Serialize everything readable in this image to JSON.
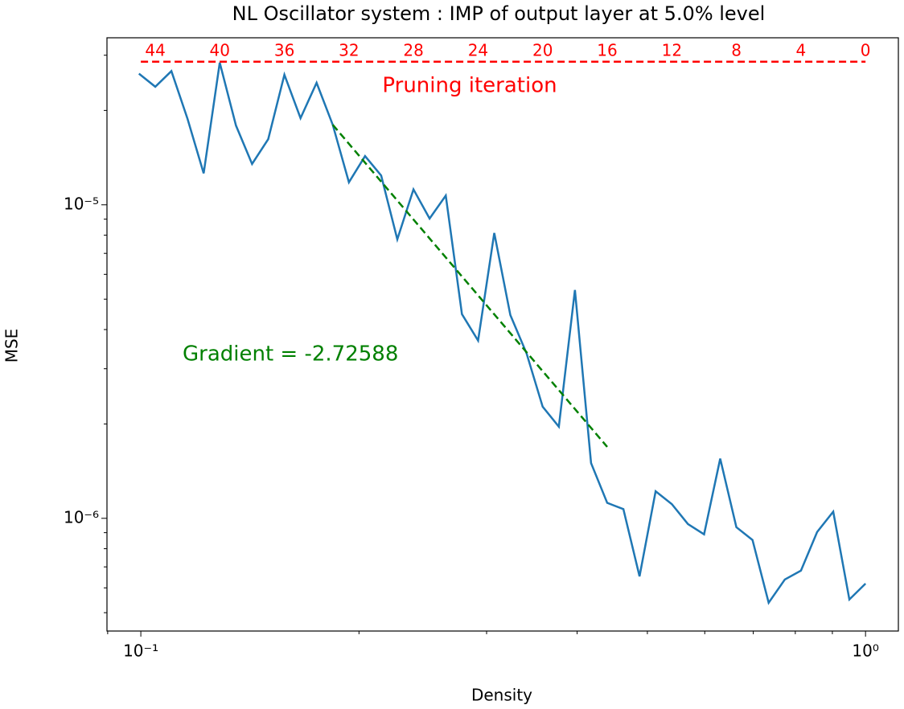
{
  "chart_data": {
    "type": "line",
    "title": "NL Oscillator system : IMP of output layer at 5.0% level",
    "xlabel": "Density",
    "ylabel": "MSE",
    "log_x": true,
    "log_y": true,
    "xlim": [
      0.0898,
      1.11
    ],
    "ylim": [
      4.37e-07,
      3.41e-05
    ],
    "xticks": [
      {
        "value": 0.1,
        "label": "10⁻¹"
      },
      {
        "value": 1,
        "label": "10⁰"
      }
    ],
    "yticks": [
      {
        "value": 1e-06,
        "label": "10⁻⁶"
      },
      {
        "value": 1e-05,
        "label": "10⁻⁵"
      }
    ],
    "xminor": [
      0.09,
      0.2,
      0.3,
      0.4,
      0.5,
      0.6,
      0.7,
      0.8,
      0.9
    ],
    "yminor": [
      5e-07,
      6e-07,
      7e-07,
      8e-07,
      9e-07,
      2e-06,
      3e-06,
      4e-06,
      5e-06,
      6e-06,
      7e-06,
      8e-06,
      9e-06,
      2e-05,
      3e-05
    ],
    "series": [
      {
        "color": "#1f77b4",
        "dash": false,
        "x": [
          0.0994,
          0.1047,
          0.1102,
          0.116,
          0.1221,
          0.1285,
          0.1353,
          0.1424,
          0.1499,
          0.1578,
          0.1661,
          0.1748,
          0.184,
          0.1937,
          0.2039,
          0.2146,
          0.2259,
          0.2378,
          0.2503,
          0.2635,
          0.2774,
          0.292,
          0.3074,
          0.3235,
          0.3406,
          0.3585,
          0.3774,
          0.3972,
          0.4181,
          0.4401,
          0.4633,
          0.4877,
          0.5133,
          0.5404,
          0.5688,
          0.5987,
          0.6302,
          0.6634,
          0.6983,
          0.7351,
          0.7738,
          0.8145,
          0.8574,
          0.9025,
          0.95,
          1.0
        ],
        "values": [
          2.62e-05,
          2.38e-05,
          2.67e-05,
          1.88e-05,
          1.26e-05,
          2.84e-05,
          1.79e-05,
          1.35e-05,
          1.62e-05,
          2.6e-05,
          1.89e-05,
          2.45e-05,
          1.8e-05,
          1.18e-05,
          1.43e-05,
          1.24e-05,
          7.76e-06,
          1.12e-05,
          9.04e-06,
          1.07e-05,
          4.48e-06,
          3.69e-06,
          8.13e-06,
          4.45e-06,
          3.36e-06,
          2.27e-06,
          1.96e-06,
          5.35e-06,
          1.5e-06,
          1.12e-06,
          1.07e-06,
          6.53e-07,
          1.22e-06,
          1.11e-06,
          9.59e-07,
          8.89e-07,
          1.55e-06,
          9.37e-07,
          8.53e-07,
          5.38e-07,
          6.38e-07,
          6.81e-07,
          9.04e-07,
          1.05e-06,
          5.51e-07,
          6.19e-07
        ]
      },
      {
        "color": "green",
        "dash": true,
        "x": [
          0.184,
          0.4401
        ],
        "values": [
          1.8e-05,
          1.69e-06
        ]
      },
      {
        "color": "red",
        "dash": true,
        "x": [
          0.1,
          1.0
        ],
        "values": [
          2.86e-05,
          2.86e-05
        ]
      }
    ],
    "top_ticks": [
      {
        "value": 0.1047,
        "label": "44"
      },
      {
        "value": 0.1285,
        "label": "40"
      },
      {
        "value": 0.1578,
        "label": "36"
      },
      {
        "value": 0.1937,
        "label": "32"
      },
      {
        "value": 0.2378,
        "label": "28"
      },
      {
        "value": 0.292,
        "label": "24"
      },
      {
        "value": 0.3585,
        "label": "20"
      },
      {
        "value": 0.4401,
        "label": "16"
      },
      {
        "value": 0.5404,
        "label": "12"
      },
      {
        "value": 0.6634,
        "label": "8"
      },
      {
        "value": 0.8145,
        "label": "4"
      },
      {
        "value": 1.0,
        "label": "0"
      }
    ],
    "top_tick_color": "red",
    "annotations": [
      {
        "text": "Pruning iteration",
        "color": "red"
      },
      {
        "text": "Gradient = -2.72588",
        "color": "green"
      }
    ]
  }
}
